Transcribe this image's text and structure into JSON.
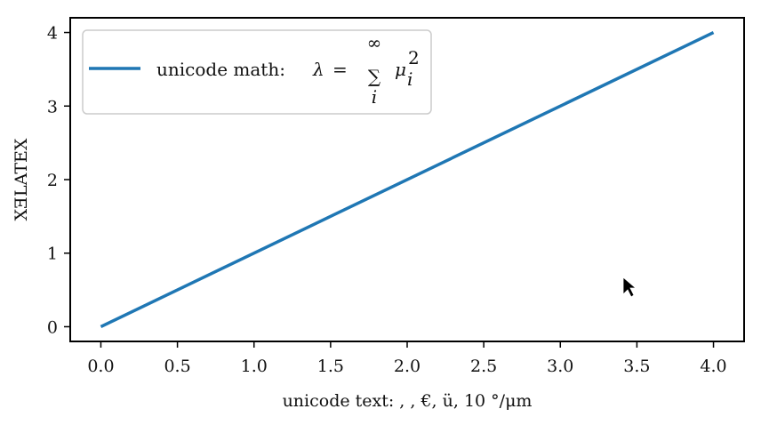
{
  "chart_data": {
    "type": "line",
    "x": [
      0.0,
      4.0
    ],
    "series": [
      {
        "name": "unicode math: λ = ∑ᵢ μᵢ²",
        "values": [
          0.0,
          4.0
        ],
        "color": "#1f77b4"
      }
    ],
    "xlabel": "unicode text:  ,  , €, ü, 10 °/μm",
    "ylabel": "XƎLATEX",
    "xlim": [
      -0.2,
      4.2
    ],
    "ylim": [
      -0.2,
      4.2
    ],
    "xticks": [
      "0.0",
      "0.5",
      "1.0",
      "1.5",
      "2.0",
      "2.5",
      "3.0",
      "3.5",
      "4.0"
    ],
    "yticks": [
      "0",
      "1",
      "2",
      "3",
      "4"
    ],
    "grid": false,
    "legend_position": "upper-left"
  },
  "legend": {
    "prefix": "unicode math: ",
    "lhs": "λ",
    "eq": "=",
    "sum": "∑",
    "sum_top": "∞",
    "sum_bottom": "i",
    "mu": "μ",
    "sub": "i",
    "sup": "2"
  }
}
